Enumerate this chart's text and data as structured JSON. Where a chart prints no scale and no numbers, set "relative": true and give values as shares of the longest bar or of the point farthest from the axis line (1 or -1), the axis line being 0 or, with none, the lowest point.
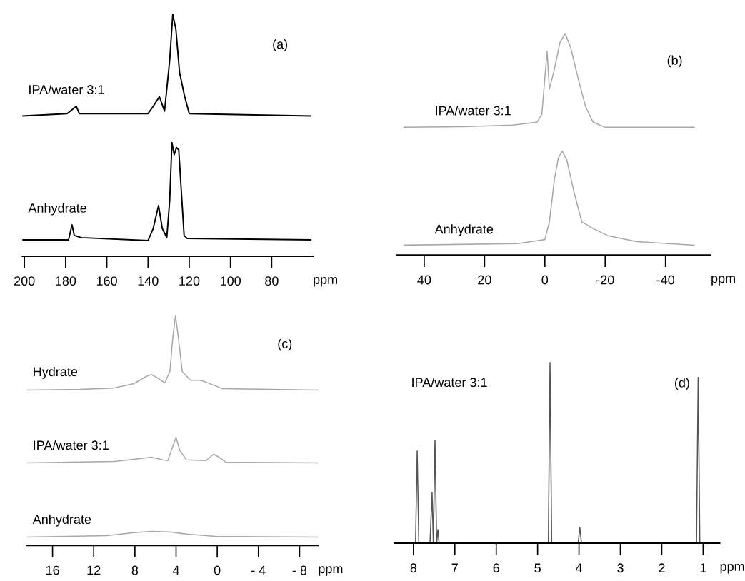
{
  "chart_data": [
    {
      "type": "line",
      "relative": true,
      "annotations": [
        "(a)"
      ],
      "xlabel": "ppm",
      "xlim": [
        201,
        60
      ],
      "xticks": [
        200,
        180,
        160,
        140,
        120,
        100,
        80
      ],
      "tick_labels": "x",
      "grid": false,
      "legend": false,
      "series": [
        {
          "name": "IPA/water 3:1",
          "color": "#000000",
          "x": [
            201,
            179.3,
            174.8,
            173.4,
            140,
            137.5,
            134.5,
            132,
            129.5,
            128,
            126.5,
            124.7,
            122.2,
            120,
            61
          ],
          "values": [
            0.58,
            0.59,
            0.62,
            0.59,
            0.59,
            0.62,
            0.66,
            0.6,
            0.81,
            1.0,
            0.94,
            0.76,
            0.66,
            0.59,
            0.58
          ]
        },
        {
          "name": "Anhydrate",
          "color": "#000000",
          "x": [
            201,
            178.6,
            176.9,
            175.8,
            172.4,
            140,
            137.5,
            134.9,
            133.1,
            130.9,
            129.5,
            128.4,
            127.3,
            126.2,
            125.1,
            124,
            122.5,
            121.1,
            61
          ],
          "values": [
            0.068,
            0.068,
            0.13,
            0.086,
            0.077,
            0.065,
            0.115,
            0.21,
            0.115,
            0.077,
            0.23,
            0.47,
            0.42,
            0.45,
            0.44,
            0.29,
            0.086,
            0.074,
            0.068
          ]
        }
      ]
    },
    {
      "type": "line",
      "relative": true,
      "annotations": [
        "(b)"
      ],
      "xlabel": "ppm",
      "xlim": [
        49,
        -55
      ],
      "xticks": [
        40,
        20,
        0,
        -20,
        -40
      ],
      "tick_labels": "x",
      "grid": false,
      "legend": false,
      "series": [
        {
          "name": "IPA/water 3:1",
          "color": "#a8a8a8",
          "x": [
            46.7,
            27,
            10.7,
            2.6,
            1,
            0,
            -0.75,
            -1.5,
            -3,
            -5,
            -6.75,
            -8.5,
            -11,
            -13.5,
            -16,
            -20,
            -49.5
          ],
          "values": [
            0.577,
            0.58,
            0.587,
            0.6,
            0.635,
            0.8,
            0.92,
            0.75,
            0.83,
            0.96,
            1.0,
            0.94,
            0.8,
            0.67,
            0.6,
            0.577,
            0.577
          ]
        },
        {
          "name": "Anhydrate",
          "color": "#a8a8a8",
          "x": [
            46.7,
            9,
            2.6,
            0,
            -1.5,
            -3.2,
            -4.5,
            -5.75,
            -7.25,
            -9.75,
            -12.25,
            -16,
            -21,
            -30.5,
            -49.5
          ],
          "values": [
            0.045,
            0.052,
            0.065,
            0.07,
            0.15,
            0.345,
            0.44,
            0.47,
            0.43,
            0.28,
            0.15,
            0.12,
            0.087,
            0.061,
            0.045
          ]
        }
      ]
    },
    {
      "type": "line",
      "relative": true,
      "annotations": [
        "(c)"
      ],
      "xlabel": "ppm",
      "xlim": [
        18.5,
        -9.8
      ],
      "xticks": [
        16,
        12,
        8,
        4,
        0,
        {
          "value": -4,
          "label": "- 4"
        },
        {
          "value": -8,
          "label": "- 8"
        }
      ],
      "tick_labels": "x",
      "grid": false,
      "legend": false,
      "series": [
        {
          "name": "Hydrate",
          "color": "#a8a8a8",
          "x": [
            18.5,
            13.3,
            10,
            8.1,
            6.9,
            6.4,
            5.7,
            5.1,
            4.6,
            4.3,
            4.05,
            3.8,
            3.4,
            2.6,
            1.6,
            0.2,
            -0.5,
            -9.8
          ],
          "values": [
            0.677,
            0.68,
            0.686,
            0.705,
            0.736,
            0.745,
            0.727,
            0.708,
            0.758,
            0.913,
            1.0,
            0.913,
            0.758,
            0.72,
            0.72,
            0.696,
            0.683,
            0.677
          ]
        },
        {
          "name": "IPA/water 3:1",
          "color": "#a8a8a8",
          "x": [
            18.5,
            10,
            7.5,
            6.4,
            5.3,
            4.8,
            4.45,
            4,
            3.65,
            3,
            1.1,
            0.7,
            0.35,
            -0.15,
            -0.85,
            -9.8
          ],
          "values": [
            0.36,
            0.366,
            0.379,
            0.385,
            0.373,
            0.37,
            0.416,
            0.472,
            0.416,
            0.373,
            0.37,
            0.385,
            0.398,
            0.385,
            0.363,
            0.36
          ]
        },
        {
          "name": "Anhydrate",
          "color": "#a8a8a8",
          "x": [
            18.5,
            10.7,
            8.1,
            6.4,
            4.6,
            3,
            0.2,
            -9.8
          ],
          "values": [
            0.037,
            0.043,
            0.056,
            0.062,
            0.059,
            0.05,
            0.04,
            0.037
          ]
        }
      ]
    },
    {
      "type": "line",
      "relative": true,
      "annotations": [
        "(d)"
      ],
      "xlabel": "ppm",
      "xlim": [
        8.45,
        0.6
      ],
      "xticks": [
        8,
        7,
        6,
        5,
        4,
        3,
        2,
        1
      ],
      "tick_labels": "x",
      "grid": false,
      "legend": false,
      "series": [
        {
          "name": "IPA/water 3:1",
          "color": "#555555",
          "x": [
            8.45,
            7.95,
            7.91,
            7.87,
            7.6,
            7.55,
            7.52,
            7.48,
            7.44,
            7.41,
            7.38,
            4.74,
            4.7,
            4.66,
            4.02,
            3.98,
            3.94,
            1.16,
            1.12,
            1.08,
            0.6
          ],
          "values": [
            0,
            0,
            0.51,
            0,
            0,
            0.28,
            0,
            0.57,
            0,
            0.075,
            0,
            0,
            1.0,
            0,
            0,
            0.087,
            0,
            0,
            0.917,
            0,
            0
          ]
        }
      ]
    }
  ]
}
